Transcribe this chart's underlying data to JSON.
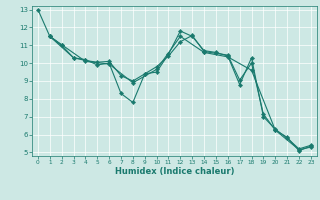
{
  "title": "",
  "xlabel": "Humidex (Indice chaleur)",
  "bg_color": "#cde8e4",
  "line_color": "#1a7a6e",
  "grid_color": "#f0f0f0",
  "xlim": [
    -0.5,
    23.5
  ],
  "ylim": [
    4.8,
    13.2
  ],
  "yticks": [
    5,
    6,
    7,
    8,
    9,
    10,
    11,
    12,
    13
  ],
  "xticks": [
    0,
    1,
    2,
    3,
    4,
    5,
    6,
    7,
    8,
    9,
    10,
    11,
    12,
    13,
    14,
    15,
    16,
    17,
    18,
    19,
    20,
    21,
    22,
    23
  ],
  "lines": [
    {
      "x": [
        0,
        1,
        2
      ],
      "y": [
        13.0,
        11.5,
        11.0
      ]
    },
    {
      "x": [
        1,
        2,
        3,
        4,
        5,
        6,
        7,
        8,
        9,
        10,
        11,
        12,
        13,
        14,
        15,
        16,
        17,
        18,
        19,
        20,
        21,
        22,
        23
      ],
      "y": [
        11.5,
        11.0,
        10.3,
        10.2,
        9.9,
        10.0,
        8.3,
        7.8,
        9.4,
        9.5,
        10.5,
        11.8,
        11.5,
        10.7,
        10.6,
        10.4,
        8.8,
        10.3,
        7.0,
        6.3,
        5.8,
        5.2,
        5.4
      ]
    },
    {
      "x": [
        1,
        3,
        4,
        5,
        6,
        7,
        8,
        9,
        10,
        11,
        12,
        13,
        14,
        15,
        16,
        17,
        18,
        19,
        20,
        21,
        22,
        23
      ],
      "y": [
        11.5,
        10.3,
        10.15,
        10.05,
        10.1,
        9.3,
        9.0,
        9.4,
        9.8,
        10.4,
        11.2,
        11.55,
        10.65,
        10.55,
        10.45,
        9.05,
        10.0,
        7.15,
        6.25,
        5.85,
        5.1,
        5.35
      ]
    },
    {
      "x": [
        1,
        4,
        6,
        8,
        10,
        12,
        14,
        16,
        18,
        20,
        22,
        23
      ],
      "y": [
        11.5,
        10.1,
        9.95,
        8.9,
        9.65,
        11.5,
        10.6,
        10.35,
        9.6,
        6.25,
        5.15,
        5.3
      ]
    }
  ]
}
